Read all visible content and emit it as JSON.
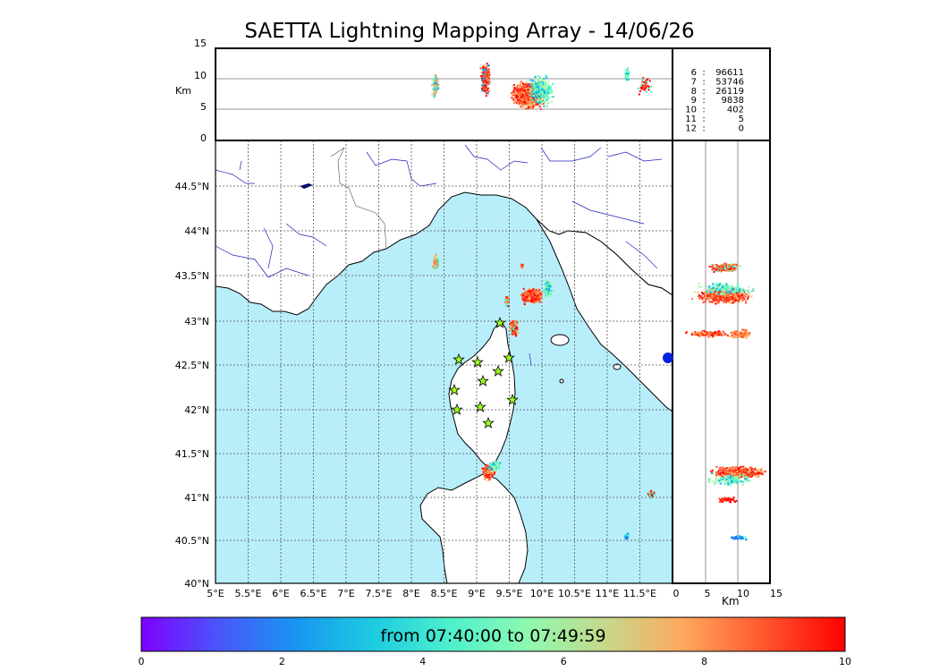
{
  "title": "SAETTA Lightning Mapping Array - 14/06/26",
  "altitude_panel": {
    "unit_label": "Km",
    "ticks": [
      "15",
      "10",
      "5",
      "0"
    ]
  },
  "right_panel": {
    "unit_label": "Km",
    "ticks": [
      "0",
      "5",
      "10",
      "15"
    ]
  },
  "map": {
    "lon_labels": [
      "5°E",
      "5.5°E",
      "6°E",
      "6.5°E",
      "7°E",
      "7.5°E",
      "8°E",
      "8.5°E",
      "9°E",
      "9.5°E",
      "10°E",
      "10.5°E",
      "11°E",
      "11.5°E"
    ],
    "lat_labels": [
      "44.5°N",
      "44°N",
      "43.5°N",
      "43°N",
      "42.5°N",
      "42°N",
      "41.5°N",
      "41°N",
      "40.5°N",
      "40°N"
    ],
    "sea_color": "#b8eefa",
    "land_color": "#ffffff",
    "station_icon": "star-icon",
    "station_color": "#9cfc1e"
  },
  "counts_legend": {
    "entries": [
      {
        "level": "6",
        "sep": ":",
        "count": "96611",
        "color": "#000000"
      },
      {
        "level": "7",
        "sep": ":",
        "count": "53746",
        "color": "#e60000"
      },
      {
        "level": "8",
        "sep": ":",
        "count": "26119",
        "color": "#000000"
      },
      {
        "level": "9",
        "sep": ":",
        "count": "9838",
        "color": "#000000"
      },
      {
        "level": "10",
        "sep": ":",
        "count": "402",
        "color": "#000000"
      },
      {
        "level": "11",
        "sep": ":",
        "count": "5",
        "color": "#000000"
      },
      {
        "level": "12",
        "sep": ":",
        "count": "0",
        "color": "#000000"
      }
    ]
  },
  "colorbar": {
    "text": "from 07:40:00 to 07:49:59",
    "ticks": [
      "0",
      "2",
      "4",
      "6",
      "8",
      "10"
    ],
    "colors": [
      "#7f00ff",
      "#3f61fa",
      "#00b4eb",
      "#3ff2cd",
      "#7ffeb2",
      "#bef2a0",
      "#ffb360",
      "#ff7a44",
      "#ff3c1f",
      "#ff0000"
    ]
  }
}
